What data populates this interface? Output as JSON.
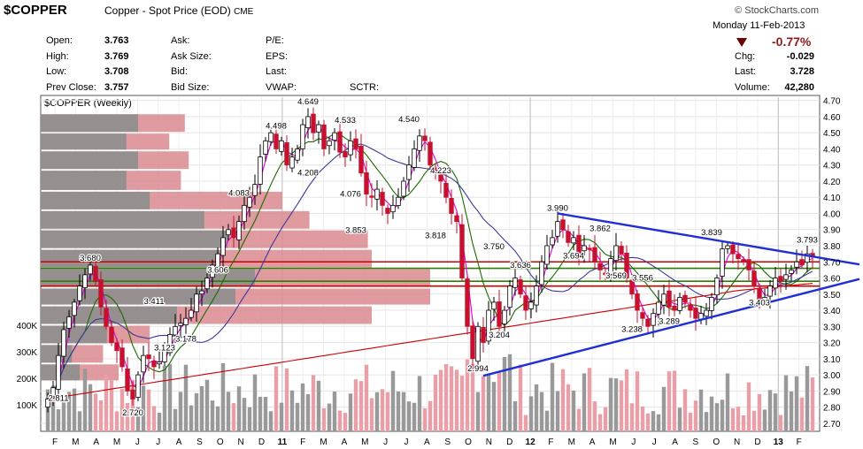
{
  "header": {
    "symbol": "$COPPER",
    "description": "Copper - Spot Price (EOD)",
    "exchange": "CME",
    "brand": "© StockCharts.com",
    "date": "Monday  11-Feb-2013"
  },
  "quote": {
    "open_label": "Open:",
    "open": "3.763",
    "high_label": "High:",
    "high": "3.769",
    "low_label": "Low:",
    "low": "3.708",
    "prev_label": "Prev Close:",
    "prev": "3.757",
    "ask_label": "Ask:",
    "ask_size_label": "Ask Size:",
    "bid_label": "Bid:",
    "bid_size_label": "Bid Size:",
    "pe_label": "P/E:",
    "eps_label": "EPS:",
    "last_label": "Last:",
    "vwap_label": "VWAP:",
    "sctr_label": "SCTR:",
    "pct_change": "-0.77%",
    "chg_label": "Chg:",
    "chg": "-0.029",
    "last2_label": "Last:",
    "last": "3.728",
    "volume_label": "Volume:",
    "volume": "42,280"
  },
  "chart_data": {
    "type": "candlestick",
    "title": "$COPPER (Weekly)",
    "ylim": [
      2.65,
      4.72
    ],
    "y_ticks": [
      "4.70",
      "4.60",
      "4.50",
      "4.40",
      "4.30",
      "4.20",
      "4.10",
      "4.00",
      "3.90",
      "3.80",
      "3.70",
      "3.60",
      "3.50",
      "3.40",
      "3.30",
      "3.20",
      "3.10",
      "3.00",
      "2.90",
      "2.80",
      "2.70"
    ],
    "volume_ticks": [
      "400K",
      "300K",
      "200K",
      "100K"
    ],
    "x_labels": [
      "F",
      "M",
      "A",
      "M",
      "J",
      "J",
      "A",
      "S",
      "O",
      "N",
      "D",
      "11",
      "F",
      "M",
      "A",
      "M",
      "J",
      "J",
      "A",
      "S",
      "O",
      "N",
      "D",
      "12",
      "F",
      "M",
      "A",
      "M",
      "J",
      "J",
      "A",
      "S",
      "O",
      "N",
      "D",
      "13",
      "F"
    ],
    "x_year_labels": [
      "11",
      "12",
      "13"
    ],
    "weekly_close": [
      2.85,
      2.92,
      3.12,
      3.28,
      3.36,
      3.45,
      3.55,
      3.62,
      3.68,
      3.58,
      3.42,
      3.3,
      3.2,
      3.15,
      3.05,
      2.9,
      2.85,
      3.0,
      3.12,
      3.1,
      3.05,
      3.08,
      3.15,
      3.25,
      3.3,
      3.32,
      3.35,
      3.4,
      3.5,
      3.52,
      3.6,
      3.68,
      3.75,
      3.85,
      3.9,
      3.85,
      3.95,
      4.05,
      4.1,
      4.18,
      4.35,
      4.45,
      4.5,
      4.4,
      4.45,
      4.3,
      4.35,
      4.4,
      4.55,
      4.6,
      4.5,
      4.55,
      4.4,
      4.45,
      4.5,
      4.38,
      4.35,
      4.45,
      4.4,
      4.25,
      4.12,
      4.1,
      4.15,
      4.05,
      4.0,
      4.05,
      4.1,
      4.2,
      4.3,
      4.4,
      4.48,
      4.45,
      4.3,
      4.25,
      4.2,
      4.1,
      4.0,
      3.95,
      3.6,
      3.3,
      3.1,
      3.3,
      3.2,
      3.4,
      3.45,
      3.3,
      3.4,
      3.55,
      3.6,
      3.5,
      3.4,
      3.45,
      3.55,
      3.7,
      3.8,
      3.85,
      3.95,
      3.9,
      3.82,
      3.85,
      3.75,
      3.8,
      3.78,
      3.7,
      3.65,
      3.62,
      3.72,
      3.8,
      3.75,
      3.6,
      3.5,
      3.4,
      3.35,
      3.3,
      3.38,
      3.45,
      3.5,
      3.42,
      3.4,
      3.48,
      3.45,
      3.4,
      3.35,
      3.38,
      3.4,
      3.48,
      3.6,
      3.78,
      3.8,
      3.75,
      3.72,
      3.7,
      3.65,
      3.55,
      3.45,
      3.48,
      3.55,
      3.6,
      3.58,
      3.62,
      3.65,
      3.7,
      3.68,
      3.75,
      3.73
    ],
    "annotations": [
      {
        "label": "3.680",
        "i": 8,
        "y": 3.68
      },
      {
        "label": "3.411",
        "i": 20,
        "y": 3.41
      },
      {
        "label": "3.606",
        "i": 32,
        "y": 3.606
      },
      {
        "label": "3.123",
        "i": 22,
        "y": 3.123
      },
      {
        "label": "3.178",
        "i": 26,
        "y": 3.178
      },
      {
        "label": "2.811",
        "i": 2,
        "y": 2.811
      },
      {
        "label": "2.720",
        "i": 16,
        "y": 2.72
      },
      {
        "label": "4.083",
        "i": 36,
        "y": 4.083
      },
      {
        "label": "4.498",
        "i": 43,
        "y": 4.498
      },
      {
        "label": "4.649",
        "i": 49,
        "y": 4.649
      },
      {
        "label": "4.533",
        "i": 56,
        "y": 4.533
      },
      {
        "label": "4.208",
        "i": 49,
        "y": 4.208
      },
      {
        "label": "4.076",
        "i": 57,
        "y": 4.076
      },
      {
        "label": "3.853",
        "i": 58,
        "y": 3.853
      },
      {
        "label": "4.540",
        "i": 68,
        "y": 4.54
      },
      {
        "label": "4.223",
        "i": 74,
        "y": 4.223
      },
      {
        "label": "3.818",
        "i": 73,
        "y": 3.818
      },
      {
        "label": "3.750",
        "i": 84,
        "y": 3.75
      },
      {
        "label": "3.636",
        "i": 89,
        "y": 3.636
      },
      {
        "label": "3.204",
        "i": 85,
        "y": 3.204
      },
      {
        "label": "2.994",
        "i": 81,
        "y": 2.994
      },
      {
        "label": "3.990",
        "i": 96,
        "y": 3.99
      },
      {
        "label": "3.694",
        "i": 99,
        "y": 3.694
      },
      {
        "label": "3.862",
        "i": 104,
        "y": 3.862
      },
      {
        "label": "3.569",
        "i": 107,
        "y": 3.569
      },
      {
        "label": "3.556",
        "i": 112,
        "y": 3.556
      },
      {
        "label": "3.238",
        "i": 110,
        "y": 3.238
      },
      {
        "label": "3.289",
        "i": 117,
        "y": 3.289
      },
      {
        "label": "3.839",
        "i": 125,
        "y": 3.839
      },
      {
        "label": "3.403",
        "i": 134,
        "y": 3.403
      },
      {
        "label": "3.793",
        "i": 143,
        "y": 3.793
      }
    ],
    "volume_profile": [
      {
        "low": 4.5,
        "high": 4.62,
        "total": 0.37,
        "up": 0.25
      },
      {
        "low": 4.39,
        "high": 4.5,
        "total": 0.33,
        "up": 0.22
      },
      {
        "low": 4.27,
        "high": 4.39,
        "total": 0.38,
        "up": 0.25
      },
      {
        "low": 4.14,
        "high": 4.27,
        "total": 0.36,
        "up": 0.22
      },
      {
        "low": 4.02,
        "high": 4.14,
        "total": 0.62,
        "up": 0.28
      },
      {
        "low": 3.9,
        "high": 4.02,
        "total": 0.69,
        "up": 0.42
      },
      {
        "low": 3.78,
        "high": 3.9,
        "total": 0.84,
        "up": 0.48
      },
      {
        "low": 3.66,
        "high": 3.78,
        "total": 0.85,
        "up": 0.46
      },
      {
        "low": 3.54,
        "high": 3.66,
        "total": 1.0,
        "up": 0.55
      },
      {
        "low": 3.43,
        "high": 3.54,
        "total": 1.0,
        "up": 0.5
      },
      {
        "low": 3.31,
        "high": 3.43,
        "total": 0.85,
        "up": 0.35
      },
      {
        "low": 3.19,
        "high": 3.31,
        "total": 0.28,
        "up": 0.17
      },
      {
        "low": 3.07,
        "high": 3.19,
        "total": 0.16,
        "up": 0.08
      },
      {
        "low": 2.96,
        "high": 3.07,
        "total": 0.2,
        "up": 0.1
      }
    ],
    "horizontal_lines": [
      {
        "y": 3.7,
        "color": "#cc0000"
      },
      {
        "y": 3.66,
        "color": "#2e7d00"
      },
      {
        "y": 3.58,
        "color": "#2e7d00"
      },
      {
        "y": 3.55,
        "color": "#cc0000"
      }
    ],
    "trendlines": [
      {
        "from": [
          82,
          2.994
        ],
        "to": [
          150,
          3.55
        ],
        "color": "#1f2fd6"
      },
      {
        "from": [
          96,
          4.0
        ],
        "to": [
          150,
          3.64
        ],
        "color": "#1f2fd6"
      }
    ],
    "colors": {
      "up": "#000000",
      "down": "#c8102e",
      "ma_fast": "#e000e0",
      "ma_mid": "#1a6b00",
      "ma_slow": "#3a3a9a",
      "ma_long": "#cc0000",
      "vol_up": "#999999",
      "vol_down": "#e8a0a8"
    }
  }
}
